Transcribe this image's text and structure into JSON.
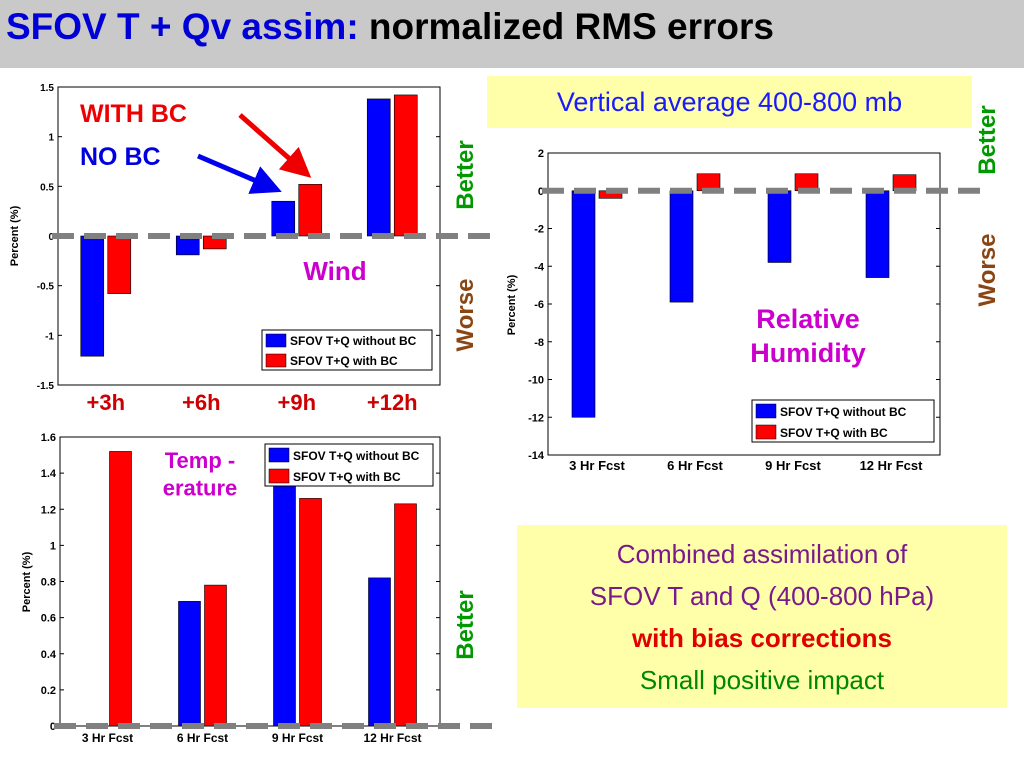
{
  "title": {
    "part1": "SFOV  T + Qv assim:",
    "part2": " normalized RMS errors"
  },
  "colors": {
    "without_bc": "#0000ff",
    "with_bc": "#ff0000",
    "baseline": "#808080"
  },
  "annotations": {
    "with_bc": "WITH BC",
    "no_bc": "NO BC",
    "better": "Better",
    "worse": "Worse"
  },
  "vertical_average": "Vertical average 400-800 mb",
  "combined": {
    "line1": "Combined assimilation of",
    "line2": "SFOV T and Q (400-800 hPa)",
    "line3": "with bias corrections",
    "line4": "Small positive impact"
  },
  "chart_data": [
    {
      "type": "bar",
      "name": "Wind",
      "label": "Wind",
      "categories": [
        "+3h",
        "+6h",
        "+9h",
        "+12h"
      ],
      "series": [
        {
          "name": "SFOV T+Q without BC",
          "values": [
            -1.21,
            -0.19,
            0.35,
            1.38
          ]
        },
        {
          "name": "SFOV T+Q with BC",
          "values": [
            -0.58,
            -0.13,
            0.52,
            1.42
          ]
        }
      ],
      "ylabel": "Percent (%)",
      "ylim": [
        -1.5,
        1.5
      ],
      "yticks": [
        "-1.5",
        "-1",
        "-0.5",
        "0",
        "0.5",
        "1",
        "1.5"
      ],
      "legend_placement": "bottom-right"
    },
    {
      "type": "bar",
      "name": "Relative Humidity",
      "label": "Relative Humidity",
      "categories": [
        "3 Hr Fcst",
        "6 Hr Fcst",
        "9 Hr Fcst",
        "12 Hr Fcst"
      ],
      "series": [
        {
          "name": "SFOV T+Q without BC",
          "values": [
            -12.0,
            -5.9,
            -3.8,
            -4.6
          ]
        },
        {
          "name": "SFOV T+Q with BC",
          "values": [
            -0.4,
            0.9,
            0.9,
            0.85
          ]
        }
      ],
      "ylabel": "Percent (%)",
      "ylim": [
        -14,
        2
      ],
      "yticks": [
        "-14",
        "-12",
        "-10",
        "-8",
        "-6",
        "-4",
        "-2",
        "0",
        "2"
      ],
      "legend_placement": "bottom-right"
    },
    {
      "type": "bar",
      "name": "Temperature",
      "label": "Temp - erature",
      "categories": [
        "3 Hr Fcst",
        "6 Hr Fcst",
        "9 Hr Fcst",
        "12 Hr Fcst"
      ],
      "series": [
        {
          "name": "SFOV T+Q without BC",
          "values": [
            0.0,
            0.69,
            1.44,
            0.82
          ]
        },
        {
          "name": "SFOV T+Q with BC",
          "values": [
            1.52,
            0.78,
            1.26,
            1.23
          ]
        }
      ],
      "ylabel": "Percent (%)",
      "ylim": [
        0,
        1.6
      ],
      "yticks": [
        "0",
        "0.2",
        "0.4",
        "0.6",
        "0.8",
        "1",
        "1.2",
        "1.4",
        "1.6"
      ],
      "legend_placement": "top-right"
    }
  ]
}
